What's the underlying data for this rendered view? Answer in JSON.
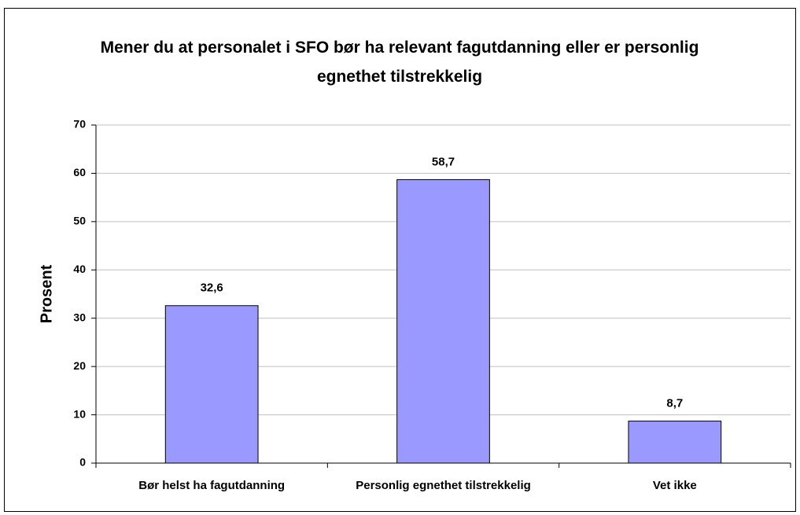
{
  "chart_data": {
    "type": "bar",
    "title": "Mener du at personalet i SFO bør ha relevant fagutdanning eller er personlig egnethet tilstrekkelig",
    "y_label": "Prosent",
    "categories": [
      "Bør helst ha fagutdanning",
      "Personlig egnethet tilstrekkelig",
      "Vet ikke"
    ],
    "values": [
      32.6,
      58.7,
      8.7
    ],
    "value_labels": [
      "32,6",
      "58,7",
      "8,7"
    ],
    "color": "#9999ff",
    "ylim": [
      0,
      70
    ],
    "yticks": [
      0,
      10,
      20,
      30,
      40,
      50,
      60,
      70
    ],
    "grid": true
  }
}
